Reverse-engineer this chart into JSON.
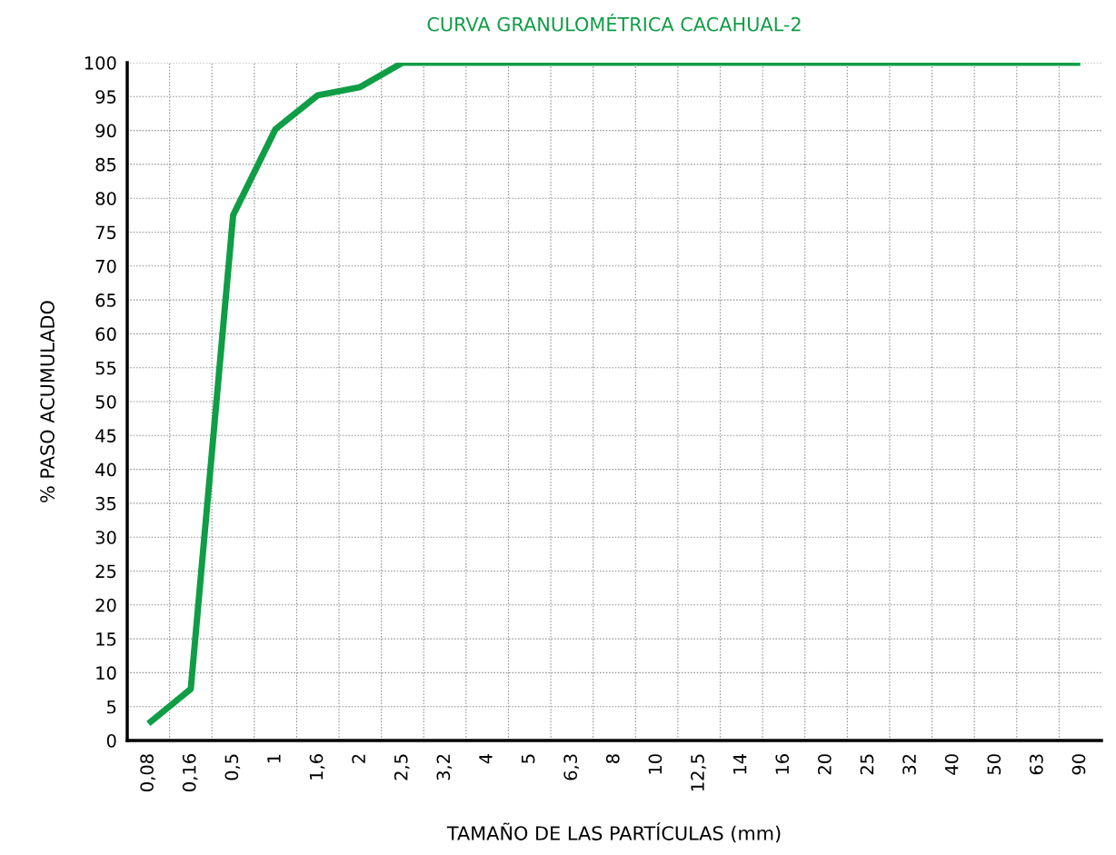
{
  "chart_data": {
    "type": "line",
    "title": "CURVA GRANULOMÉTRICA CACAHUAL-2",
    "xlabel": "TAMAÑO DE LAS PARTÍCULAS (mm)",
    "ylabel": "% PASO ACUMULADO",
    "categories": [
      "0,08",
      "0,16",
      "0,5",
      "1",
      "1,6",
      "2",
      "2,5",
      "3,2",
      "4",
      "5",
      "6,3",
      "8",
      "10",
      "12,5",
      "14",
      "16",
      "20",
      "25",
      "32",
      "40",
      "50",
      "63",
      "90"
    ],
    "series": [
      {
        "color": "#0f9d45",
        "values": [
          2.5,
          7.6,
          77.5,
          90.2,
          95.2,
          96.4,
          100,
          100,
          100,
          100,
          100,
          100,
          100,
          100,
          100,
          100,
          100,
          100,
          100,
          100,
          100,
          100,
          100
        ]
      }
    ],
    "ylim": [
      0,
      100
    ],
    "yticks": [
      0,
      5,
      10,
      15,
      20,
      25,
      30,
      35,
      40,
      45,
      50,
      55,
      60,
      65,
      70,
      75,
      80,
      85,
      90,
      95,
      100
    ],
    "grid": true,
    "marker": "none",
    "line_style": "solid"
  }
}
